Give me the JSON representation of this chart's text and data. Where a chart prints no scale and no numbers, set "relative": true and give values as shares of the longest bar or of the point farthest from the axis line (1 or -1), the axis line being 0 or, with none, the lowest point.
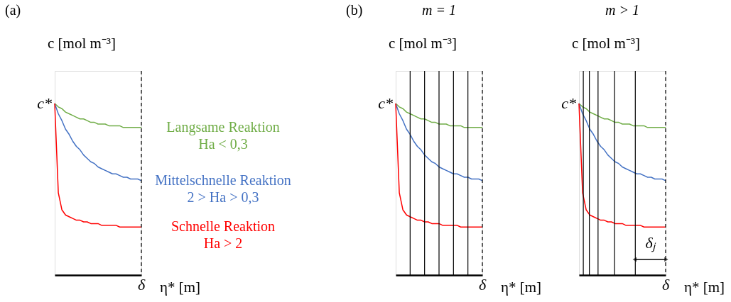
{
  "chart_data": [
    {
      "type": "line",
      "relative": true,
      "title": "(a)",
      "xlabel": "η* [m]",
      "ylabel": "c [mol m⁻³]",
      "categories": [
        null,
        null,
        null,
        null,
        null,
        null,
        null,
        null,
        null,
        null,
        null,
        null,
        null,
        null,
        null,
        null,
        null,
        null,
        null,
        null,
        null,
        null,
        null,
        null,
        null
      ],
      "series": [
        {
          "name": "Langsame Reaktion\nHa < 0,3",
          "color": "#70ad47",
          "values": [
            1,
            0.98,
            0.97,
            0.95,
            0.94,
            0.93,
            0.92,
            0.91,
            0.91,
            0.9,
            0.89,
            0.89,
            0.88,
            0.88,
            0.88,
            0.87,
            0.87,
            0.87,
            0.87,
            0.86,
            0.86,
            0.86,
            0.86,
            0.86,
            0.86
          ]
        },
        {
          "name": "Mittelschnelle Reaktion\n2 > Ha > 0,3",
          "color": "#4472c4",
          "values": [
            1,
            0.94,
            0.9,
            0.85,
            0.82,
            0.78,
            0.75,
            0.73,
            0.7,
            0.68,
            0.66,
            0.65,
            0.63,
            0.62,
            0.61,
            0.6,
            0.59,
            0.59,
            0.58,
            0.57,
            0.57,
            0.56,
            0.56,
            0.56,
            0.55
          ]
        },
        {
          "name": "Schnelle Reaktion\nHa > 2",
          "color": "#ff0000",
          "values": [
            1,
            0.48,
            0.38,
            0.35,
            0.34,
            0.33,
            0.32,
            0.32,
            0.31,
            0.31,
            0.3,
            0.3,
            0.3,
            0.29,
            0.29,
            0.29,
            0.29,
            0.29,
            0.28,
            0.28,
            0.28,
            0.28,
            0.28,
            0.28,
            0.28
          ]
        }
      ],
      "annotations": [
        "c*",
        "δ"
      ]
    },
    {
      "type": "line",
      "relative": true,
      "title": "(b)",
      "subtitle": "m = 1",
      "xlabel": "η* [m]",
      "ylabel": "c [mol m⁻³]",
      "categories": [
        null,
        null,
        null,
        null,
        null,
        null,
        null,
        null,
        null,
        null,
        null,
        null,
        null,
        null,
        null,
        null,
        null,
        null,
        null,
        null,
        null,
        null,
        null,
        null,
        null
      ],
      "series": [
        {
          "color": "#70ad47",
          "values": [
            1,
            0.98,
            0.97,
            0.95,
            0.94,
            0.93,
            0.92,
            0.91,
            0.91,
            0.9,
            0.89,
            0.89,
            0.88,
            0.88,
            0.88,
            0.87,
            0.87,
            0.87,
            0.87,
            0.86,
            0.86,
            0.86,
            0.86,
            0.86,
            0.86
          ]
        },
        {
          "color": "#4472c4",
          "values": [
            1,
            0.94,
            0.9,
            0.85,
            0.82,
            0.78,
            0.75,
            0.73,
            0.7,
            0.68,
            0.66,
            0.65,
            0.63,
            0.62,
            0.61,
            0.6,
            0.59,
            0.59,
            0.58,
            0.57,
            0.57,
            0.56,
            0.56,
            0.56,
            0.55
          ]
        },
        {
          "color": "#ff0000",
          "values": [
            1,
            0.48,
            0.38,
            0.35,
            0.34,
            0.33,
            0.32,
            0.32,
            0.31,
            0.31,
            0.3,
            0.3,
            0.3,
            0.29,
            0.29,
            0.29,
            0.29,
            0.29,
            0.28,
            0.28,
            0.28,
            0.28,
            0.28,
            0.28,
            0.28
          ]
        }
      ],
      "annotations": [
        "c*",
        "δ"
      ],
      "grid": "x"
    },
    {
      "type": "line",
      "relative": true,
      "subtitle": "m > 1",
      "xlabel": "η* [m]",
      "ylabel": "c [mol m⁻³]",
      "categories": [
        null,
        null,
        null,
        null,
        null,
        null,
        null,
        null,
        null,
        null,
        null,
        null,
        null,
        null,
        null,
        null,
        null,
        null,
        null,
        null,
        null,
        null,
        null,
        null,
        null
      ],
      "series": [
        {
          "color": "#70ad47",
          "values": [
            1,
            0.98,
            0.97,
            0.95,
            0.94,
            0.93,
            0.92,
            0.91,
            0.91,
            0.9,
            0.89,
            0.89,
            0.88,
            0.88,
            0.88,
            0.87,
            0.87,
            0.87,
            0.87,
            0.86,
            0.86,
            0.86,
            0.86,
            0.86,
            0.86
          ]
        },
        {
          "color": "#4472c4",
          "values": [
            1,
            0.94,
            0.9,
            0.85,
            0.82,
            0.78,
            0.75,
            0.73,
            0.7,
            0.68,
            0.66,
            0.65,
            0.63,
            0.62,
            0.61,
            0.6,
            0.59,
            0.59,
            0.58,
            0.57,
            0.57,
            0.56,
            0.56,
            0.56,
            0.55
          ]
        },
        {
          "color": "#ff0000",
          "values": [
            1,
            0.48,
            0.38,
            0.35,
            0.34,
            0.33,
            0.32,
            0.32,
            0.31,
            0.31,
            0.3,
            0.3,
            0.3,
            0.29,
            0.29,
            0.29,
            0.29,
            0.29,
            0.28,
            0.28,
            0.28,
            0.28,
            0.28,
            0.28,
            0.28
          ]
        }
      ],
      "annotations": [
        "c*",
        "δ",
        "δⱼ"
      ],
      "grid": "x"
    }
  ]
}
